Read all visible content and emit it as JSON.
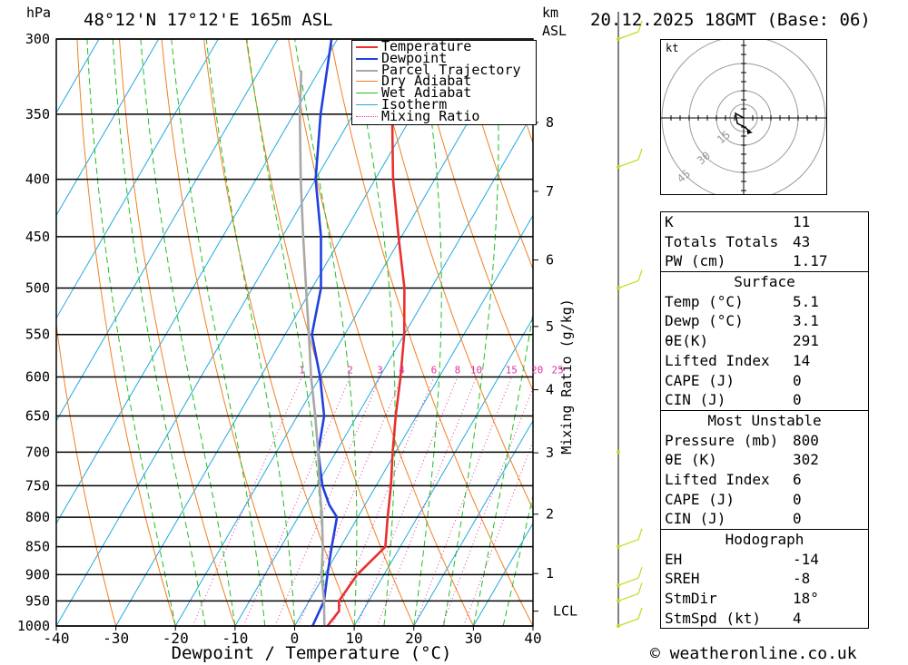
{
  "header": {
    "location": "48°12'N 17°12'E 165m ASL",
    "datetime": "20.12.2025 18GMT (Base: 06)",
    "hpa_unit": "hPa",
    "km_unit": "km",
    "asl_unit": "ASL",
    "credit": "© weatheronline.co.uk"
  },
  "legend": [
    {
      "label": "Temperature",
      "color": "#e83030",
      "style": "solid"
    },
    {
      "label": "Dewpoint",
      "color": "#2040e0",
      "style": "solid"
    },
    {
      "label": "Parcel Trajectory",
      "color": "#a8a8a8",
      "style": "solid"
    },
    {
      "label": "Dry Adiabat",
      "color": "#f08020",
      "style": "solid"
    },
    {
      "label": "Wet Adiabat",
      "color": "#20c020",
      "style": "solid"
    },
    {
      "label": "Isotherm",
      "color": "#20a8e0",
      "style": "solid"
    },
    {
      "label": "Mixing Ratio",
      "color": "#e030a0",
      "style": "dotted"
    }
  ],
  "chart_data": {
    "type": "line",
    "title": "Skew-T log-P",
    "xlabel": "Dewpoint / Temperature (°C)",
    "ylabel": "hPa",
    "xlim": [
      -40,
      40
    ],
    "ylim": [
      1000,
      300
    ],
    "x_ticks": [
      -40,
      -30,
      -20,
      -10,
      0,
      10,
      20,
      30,
      40
    ],
    "pressure_levels": [
      300,
      350,
      400,
      450,
      500,
      550,
      600,
      650,
      700,
      750,
      800,
      850,
      900,
      950,
      1000
    ],
    "km_ticks": [
      {
        "label": "8",
        "p": 356
      },
      {
        "label": "7",
        "p": 410
      },
      {
        "label": "6",
        "p": 472
      },
      {
        "label": "5",
        "p": 541
      },
      {
        "label": "4",
        "p": 616
      },
      {
        "label": "3",
        "p": 701
      },
      {
        "label": "2",
        "p": 795
      },
      {
        "label": "1",
        "p": 898
      }
    ],
    "lcl_label": "LCL",
    "lcl_p": 970,
    "mixing_ratio_axis_label": "Mixing Ratio (g/kg)",
    "mixing_ratio_labels": [
      "1",
      "2",
      "3",
      "4",
      "6",
      "8",
      "10",
      "15",
      "20",
      "25"
    ],
    "mixing_ratio_values": [
      1,
      2,
      3,
      4,
      6,
      8,
      10,
      15,
      20,
      25
    ],
    "series": [
      {
        "name": "Temperature",
        "points": [
          [
            1000,
            5.5
          ],
          [
            970,
            6
          ],
          [
            950,
            5
          ],
          [
            900,
            5.5
          ],
          [
            850,
            7.5
          ],
          [
            800,
            5
          ],
          [
            750,
            2.5
          ],
          [
            700,
            -0.5
          ],
          [
            650,
            -3.5
          ],
          [
            600,
            -6.5
          ],
          [
            550,
            -10
          ],
          [
            500,
            -14.5
          ],
          [
            450,
            -20.5
          ],
          [
            400,
            -27
          ],
          [
            350,
            -33.5
          ],
          [
            300,
            -40
          ]
        ]
      },
      {
        "name": "Dewpoint",
        "points": [
          [
            1000,
            3
          ],
          [
            950,
            2.5
          ],
          [
            900,
            0.5
          ],
          [
            850,
            -1.5
          ],
          [
            800,
            -3.5
          ],
          [
            780,
            -6
          ],
          [
            750,
            -9
          ],
          [
            700,
            -13
          ],
          [
            650,
            -15.5
          ],
          [
            600,
            -20
          ],
          [
            550,
            -25.5
          ],
          [
            500,
            -28.5
          ],
          [
            450,
            -33.5
          ],
          [
            400,
            -40
          ],
          [
            350,
            -45.5
          ],
          [
            300,
            -51
          ]
        ]
      },
      {
        "name": "Parcel Trajectory",
        "points": [
          [
            1000,
            5
          ],
          [
            970,
            3.5
          ],
          [
            950,
            2.5
          ],
          [
            900,
            -0.5
          ],
          [
            850,
            -3
          ],
          [
            800,
            -6
          ],
          [
            750,
            -9.5
          ],
          [
            700,
            -13
          ],
          [
            650,
            -17
          ],
          [
            600,
            -21.5
          ],
          [
            550,
            -26
          ],
          [
            500,
            -31
          ],
          [
            450,
            -36.5
          ],
          [
            400,
            -42.5
          ],
          [
            350,
            -49
          ],
          [
            320,
            -53
          ]
        ]
      }
    ],
    "wind_barbs": [
      {
        "p": 300,
        "speed": 5
      },
      {
        "p": 390,
        "speed": 5
      },
      {
        "p": 500,
        "speed": 5
      },
      {
        "p": 700,
        "speed": 0
      },
      {
        "p": 850,
        "speed": 5
      },
      {
        "p": 920,
        "speed": 5
      },
      {
        "p": 950,
        "speed": 5
      },
      {
        "p": 1000,
        "speed": 5
      }
    ]
  },
  "hodograph": {
    "unit": "kt",
    "ring_labels": [
      "15",
      "30",
      "45"
    ]
  },
  "indices": [
    {
      "label": "K",
      "value": "11"
    },
    {
      "label": "Totals Totals",
      "value": "43"
    },
    {
      "label": "PW (cm)",
      "value": "1.17"
    }
  ],
  "surface": {
    "title": "Surface",
    "rows": [
      {
        "label": "Temp (°C)",
        "value": "5.1"
      },
      {
        "label": "Dewp (°C)",
        "value": "3.1"
      },
      {
        "label": "θE(K)",
        "value": "291"
      },
      {
        "label": "Lifted Index",
        "value": "14"
      },
      {
        "label": "CAPE (J)",
        "value": "0"
      },
      {
        "label": "CIN (J)",
        "value": "0"
      }
    ]
  },
  "most_unstable": {
    "title": "Most Unstable",
    "rows": [
      {
        "label": "Pressure (mb)",
        "value": "800"
      },
      {
        "label": "θE (K)",
        "value": "302"
      },
      {
        "label": "Lifted Index",
        "value": "6"
      },
      {
        "label": "CAPE (J)",
        "value": "0"
      },
      {
        "label": "CIN (J)",
        "value": "0"
      }
    ]
  },
  "hodograph_table": {
    "title": "Hodograph",
    "rows": [
      {
        "label": "EH",
        "value": "-14"
      },
      {
        "label": "SREH",
        "value": "-8"
      },
      {
        "label": "StmDir",
        "value": "18°"
      },
      {
        "label": "StmSpd (kt)",
        "value": "4"
      }
    ]
  }
}
